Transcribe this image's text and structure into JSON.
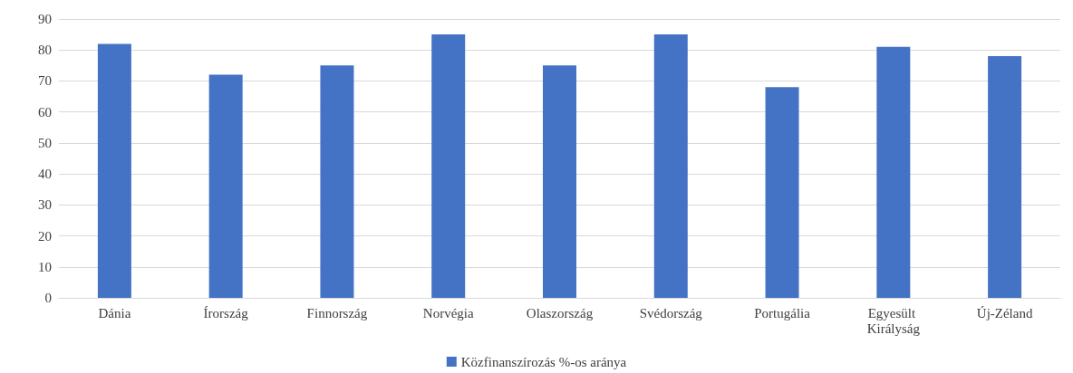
{
  "chart_data": {
    "type": "bar",
    "categories": [
      "Dánia",
      "Írország",
      "Finnország",
      "Norvégia",
      "Olaszország",
      "Svédország",
      "Portugália",
      "Egyesült Királyság",
      "Új-Zéland"
    ],
    "series": [
      {
        "name": "Közfinanszírozás %-os aránya",
        "color": "#4472c4",
        "values": [
          82,
          72,
          75,
          85,
          75,
          85,
          68,
          81,
          78
        ]
      }
    ],
    "ylim": [
      0,
      90
    ],
    "yticks": [
      0,
      10,
      20,
      30,
      40,
      50,
      60,
      70,
      80,
      90
    ],
    "grid": "y",
    "legend": "bottom"
  }
}
